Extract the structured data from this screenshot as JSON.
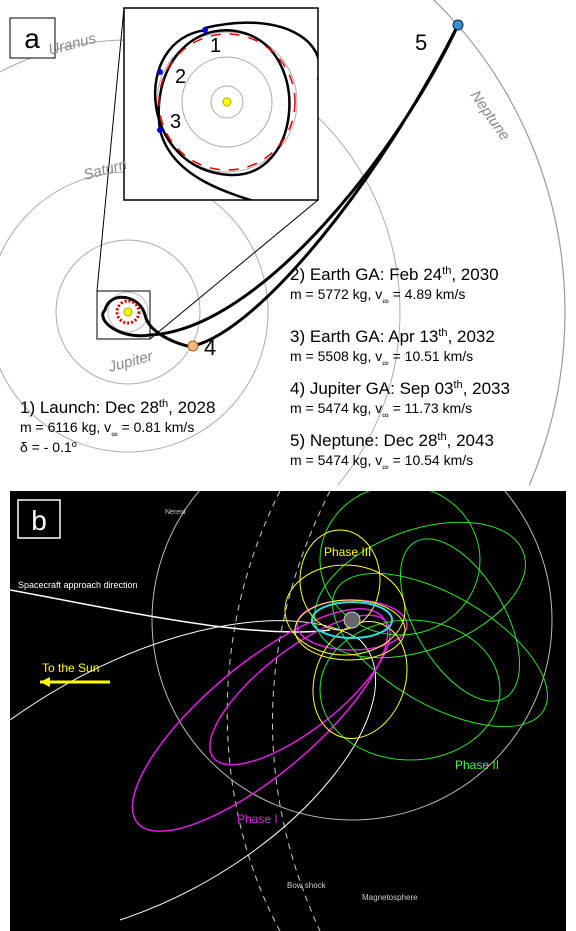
{
  "panel_a": {
    "label": "a",
    "planets": [
      "Uranus",
      "Saturn",
      "Jupiter",
      "Neptune"
    ],
    "markers": [
      "1",
      "2",
      "3",
      "4",
      "5"
    ],
    "events": [
      {
        "title": [
          "1) Launch: Dec 28",
          "th",
          ", 2028"
        ],
        "details": [
          "m = 6116 kg,  v",
          "∞",
          " = 0.81 km/s"
        ],
        "note": [
          "δ = - 0.1",
          "o"
        ]
      },
      {
        "title": [
          "2) Earth GA: Feb 24",
          "th",
          ", 2030"
        ],
        "details": [
          "m = 5772 kg,  v",
          "∞",
          " = 4.89 km/s"
        ]
      },
      {
        "title": [
          "3) Earth GA: Apr 13",
          "th",
          ", 2032"
        ],
        "details": [
          "m = 5508 kg,  v",
          "∞",
          " = 10.51 km/s"
        ]
      },
      {
        "title": [
          "4) Jupiter GA: Sep 03",
          "th",
          ", 2033"
        ],
        "details": [
          "m = 5474 kg,  v",
          "∞",
          " = 11.73 km/s"
        ]
      },
      {
        "title": [
          "5) Neptune: Dec 28",
          "th",
          ", 2043"
        ],
        "details": [
          "m = 5474 kg,  v",
          "∞",
          " = 10.54 km/s"
        ]
      }
    ]
  },
  "panel_b": {
    "label": "b",
    "nereid": "Nereid",
    "approach": "Spacecraft approach direction",
    "sun": "To the Sun",
    "phase3": "Phase III",
    "phase2": "Phase II",
    "phase1": "Phase I",
    "bow_shock": "Bow shock",
    "magnetosphere": "Magnetosphere"
  }
}
